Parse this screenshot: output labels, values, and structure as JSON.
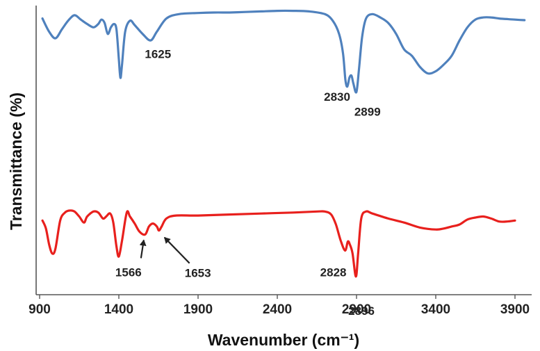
{
  "chart_data": {
    "type": "line",
    "xlabel": "Wavenumber (cm⁻¹)",
    "ylabel": "Transmittance (%)",
    "xlim": [
      900,
      4000
    ],
    "x_ticks": [
      "900",
      "1400",
      "1900",
      "2400",
      "2900",
      "3400",
      "3900"
    ],
    "y_ticks_shown": false,
    "grid": false,
    "legend": "none",
    "series": [
      {
        "color": "#4f81bd",
        "points": [
          [
            918,
            0.92
          ],
          [
            960,
            0.8
          ],
          [
            1000,
            0.74
          ],
          [
            1040,
            0.82
          ],
          [
            1080,
            0.9
          ],
          [
            1120,
            0.95
          ],
          [
            1160,
            0.91
          ],
          [
            1200,
            0.87
          ],
          [
            1240,
            0.84
          ],
          [
            1270,
            0.87
          ],
          [
            1290,
            0.91
          ],
          [
            1310,
            0.88
          ],
          [
            1330,
            0.78
          ],
          [
            1350,
            0.84
          ],
          [
            1370,
            0.87
          ],
          [
            1385,
            0.82
          ],
          [
            1400,
            0.55
          ],
          [
            1410,
            0.38
          ],
          [
            1420,
            0.5
          ],
          [
            1440,
            0.8
          ],
          [
            1470,
            0.9
          ],
          [
            1500,
            0.86
          ],
          [
            1550,
            0.78
          ],
          [
            1600,
            0.72
          ],
          [
            1640,
            0.8
          ],
          [
            1700,
            0.92
          ],
          [
            1780,
            0.96
          ],
          [
            1900,
            0.97
          ],
          [
            2000,
            0.975
          ],
          [
            2100,
            0.975
          ],
          [
            2200,
            0.98
          ],
          [
            2300,
            0.985
          ],
          [
            2400,
            0.99
          ],
          [
            2500,
            0.99
          ],
          [
            2600,
            0.985
          ],
          [
            2700,
            0.96
          ],
          [
            2750,
            0.9
          ],
          [
            2790,
            0.78
          ],
          [
            2815,
            0.6
          ],
          [
            2830,
            0.36
          ],
          [
            2842,
            0.3
          ],
          [
            2855,
            0.38
          ],
          [
            2868,
            0.4
          ],
          [
            2880,
            0.33
          ],
          [
            2899,
            0.25
          ],
          [
            2915,
            0.45
          ],
          [
            2935,
            0.75
          ],
          [
            2960,
            0.92
          ],
          [
            3000,
            0.96
          ],
          [
            3050,
            0.93
          ],
          [
            3100,
            0.88
          ],
          [
            3150,
            0.78
          ],
          [
            3200,
            0.64
          ],
          [
            3250,
            0.58
          ],
          [
            3300,
            0.48
          ],
          [
            3350,
            0.42
          ],
          [
            3400,
            0.44
          ],
          [
            3450,
            0.5
          ],
          [
            3500,
            0.58
          ],
          [
            3550,
            0.72
          ],
          [
            3600,
            0.84
          ],
          [
            3650,
            0.91
          ],
          [
            3700,
            0.93
          ],
          [
            3750,
            0.93
          ],
          [
            3800,
            0.92
          ],
          [
            3850,
            0.915
          ],
          [
            3900,
            0.91
          ],
          [
            3960,
            0.905
          ]
        ]
      },
      {
        "color": "#e8201d",
        "points": [
          [
            918,
            0.38
          ],
          [
            940,
            0.3
          ],
          [
            960,
            0.14
          ],
          [
            980,
            0.05
          ],
          [
            1000,
            0.1
          ],
          [
            1030,
            0.38
          ],
          [
            1060,
            0.46
          ],
          [
            1090,
            0.48
          ],
          [
            1120,
            0.47
          ],
          [
            1150,
            0.42
          ],
          [
            1180,
            0.36
          ],
          [
            1200,
            0.42
          ],
          [
            1240,
            0.47
          ],
          [
            1270,
            0.46
          ],
          [
            1300,
            0.4
          ],
          [
            1320,
            0.42
          ],
          [
            1345,
            0.45
          ],
          [
            1365,
            0.36
          ],
          [
            1385,
            0.12
          ],
          [
            1400,
            0.02
          ],
          [
            1420,
            0.18
          ],
          [
            1450,
            0.46
          ],
          [
            1470,
            0.42
          ],
          [
            1500,
            0.35
          ],
          [
            1530,
            0.27
          ],
          [
            1566,
            0.24
          ],
          [
            1590,
            0.32
          ],
          [
            1615,
            0.35
          ],
          [
            1640,
            0.32
          ],
          [
            1653,
            0.28
          ],
          [
            1670,
            0.32
          ],
          [
            1700,
            0.4
          ],
          [
            1760,
            0.43
          ],
          [
            1900,
            0.43
          ],
          [
            2100,
            0.44
          ],
          [
            2300,
            0.45
          ],
          [
            2500,
            0.46
          ],
          [
            2650,
            0.47
          ],
          [
            2700,
            0.47
          ],
          [
            2740,
            0.44
          ],
          [
            2770,
            0.34
          ],
          [
            2800,
            0.18
          ],
          [
            2828,
            0.08
          ],
          [
            2845,
            0.17
          ],
          [
            2858,
            0.14
          ],
          [
            2875,
            0.05
          ],
          [
            2896,
            -0.18
          ],
          [
            2910,
            0.05
          ],
          [
            2930,
            0.4
          ],
          [
            2960,
            0.47
          ],
          [
            3000,
            0.45
          ],
          [
            3100,
            0.4
          ],
          [
            3200,
            0.36
          ],
          [
            3300,
            0.31
          ],
          [
            3400,
            0.29
          ],
          [
            3450,
            0.3
          ],
          [
            3500,
            0.32
          ],
          [
            3550,
            0.34
          ],
          [
            3600,
            0.39
          ],
          [
            3650,
            0.41
          ],
          [
            3700,
            0.42
          ],
          [
            3750,
            0.4
          ],
          [
            3800,
            0.37
          ],
          [
            3850,
            0.37
          ],
          [
            3900,
            0.38
          ]
        ]
      }
    ],
    "annotations": [
      {
        "text": "1625",
        "series": 0,
        "x": 1625,
        "arrow": false
      },
      {
        "text": "2830",
        "series": 0,
        "x": 2830,
        "arrow": false
      },
      {
        "text": "2899",
        "series": 0,
        "x": 2899,
        "arrow": false
      },
      {
        "text": "1566",
        "series": 1,
        "x": 1566,
        "arrow": true
      },
      {
        "text": "1653",
        "series": 1,
        "x": 1653,
        "arrow": true
      },
      {
        "text": "2828",
        "series": 1,
        "x": 2828,
        "arrow": false
      },
      {
        "text": "2896",
        "series": 1,
        "x": 2896,
        "arrow": false
      }
    ]
  }
}
